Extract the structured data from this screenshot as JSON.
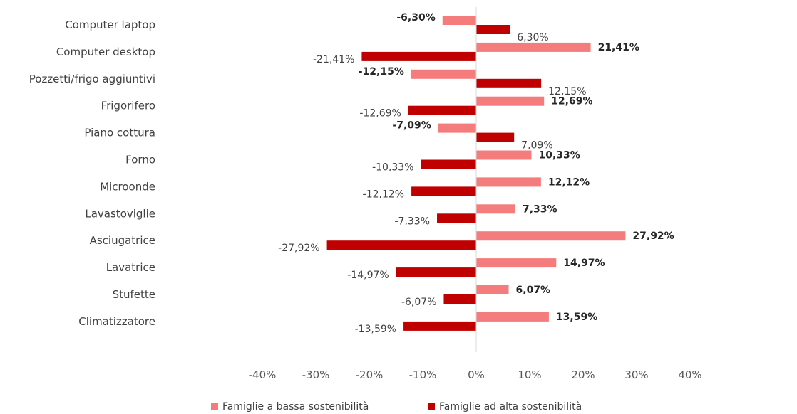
{
  "chart_data": {
    "type": "bar",
    "orientation": "horizontal",
    "categories": [
      "Computer laptop",
      "Computer desktop",
      "Pozzetti/frigo aggiuntivi",
      "Frigorifero",
      "Piano cottura",
      "Forno",
      "Microonde",
      "Lavastoviglie",
      "Asciugatrice",
      "Lavatrice",
      "Stufette",
      "Climatizzatore"
    ],
    "series": [
      {
        "name": "Famiglie a bassa sostenibilità",
        "color": "#f47c7c",
        "values": [
          -6.3,
          21.41,
          -12.15,
          12.69,
          -7.09,
          10.33,
          12.12,
          7.33,
          27.92,
          14.97,
          6.07,
          13.59
        ],
        "labels": [
          "-6,30%",
          "21,41%",
          "-12,15%",
          "12,69%",
          "-7,09%",
          "10,33%",
          "12,12%",
          "7,33%",
          "27,92%",
          "14,97%",
          "6,07%",
          "13,59%"
        ]
      },
      {
        "name": "Famiglie ad alta sostenibilità",
        "color": "#c00000",
        "values": [
          6.3,
          -21.41,
          12.15,
          -12.69,
          7.09,
          -10.33,
          -12.12,
          -7.33,
          -27.92,
          -14.97,
          -6.07,
          -13.59
        ],
        "labels": [
          "6,30%",
          "-21,41%",
          "12,15%",
          "-12,69%",
          "7,09%",
          "-10,33%",
          "-12,12%",
          "-7,33%",
          "-27,92%",
          "-14,97%",
          "-6,07%",
          "-13,59%"
        ]
      }
    ],
    "xlim": [
      -40,
      40
    ],
    "x_ticks": [
      -40,
      -30,
      -20,
      -10,
      0,
      10,
      20,
      30,
      40
    ],
    "x_tick_labels": [
      "-40%",
      "-30%",
      "-20%",
      "-10%",
      "0%",
      "10%",
      "20%",
      "30%",
      "40%"
    ],
    "grid": false,
    "legend_position": "bottom"
  }
}
